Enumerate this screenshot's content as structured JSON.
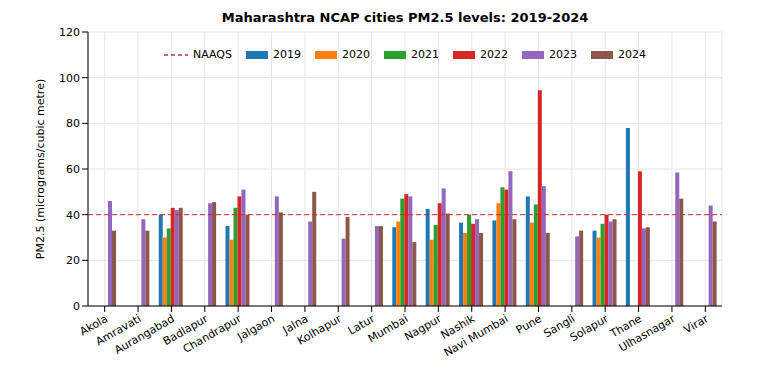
{
  "chart_data": {
    "type": "bar",
    "title": "Maharashtra NCAP cities PM2.5 levels: 2019-2024",
    "y_label": "PM2.5 (micrograms/cubic metre)",
    "categories": [
      "Akola",
      "Amravati",
      "Aurangabad",
      "Badlapur",
      "Chandrapur",
      "Jalgaon",
      "Jalna",
      "Kolhapur",
      "Latur",
      "Mumbai",
      "Nagpur",
      "Nashik",
      "Navi Mumbai",
      "Pune",
      "Sangli",
      "Solapur",
      "Thane",
      "Ulhasnagar",
      "Virar"
    ],
    "series": [
      {
        "name": "2019",
        "color": "#1f77b4",
        "values": [
          null,
          null,
          40,
          null,
          35,
          null,
          null,
          null,
          null,
          34.5,
          42.5,
          36.5,
          37.5,
          48,
          null,
          33,
          78,
          null,
          null
        ]
      },
      {
        "name": "2020",
        "color": "#ff7f0e",
        "values": [
          null,
          null,
          30,
          null,
          29,
          null,
          null,
          null,
          null,
          37,
          29,
          32,
          45,
          36.5,
          null,
          30,
          null,
          null,
          null
        ]
      },
      {
        "name": "2021",
        "color": "#2ca02c",
        "values": [
          null,
          null,
          34,
          null,
          43,
          null,
          null,
          null,
          null,
          47,
          35.5,
          40,
          52,
          44.5,
          null,
          36,
          null,
          null,
          null
        ]
      },
      {
        "name": "2022",
        "color": "#d62728",
        "values": [
          null,
          null,
          43,
          null,
          48,
          null,
          null,
          null,
          null,
          49,
          45,
          36,
          51,
          94.5,
          null,
          40,
          59,
          null,
          null
        ]
      },
      {
        "name": "2023",
        "color": "#9467bd",
        "values": [
          46,
          38,
          42,
          45,
          51,
          48,
          37,
          29.5,
          35,
          48,
          51.5,
          38,
          59,
          52.5,
          30.5,
          37,
          34,
          58.5,
          44
        ]
      },
      {
        "name": "2024",
        "color": "#8c564b",
        "values": [
          33,
          33,
          43,
          45.5,
          40,
          41,
          50,
          39,
          35,
          28,
          40.5,
          32,
          38,
          32,
          33,
          38,
          34.5,
          47,
          37
        ]
      }
    ],
    "reference_line": {
      "name": "NAAQS",
      "value": 40,
      "color": "#d62728",
      "line_style": "dashed"
    },
    "ylim": [
      0,
      120
    ],
    "yticks": [
      0,
      20,
      40,
      60,
      80,
      100,
      120
    ],
    "grid": true,
    "legend": "top"
  }
}
